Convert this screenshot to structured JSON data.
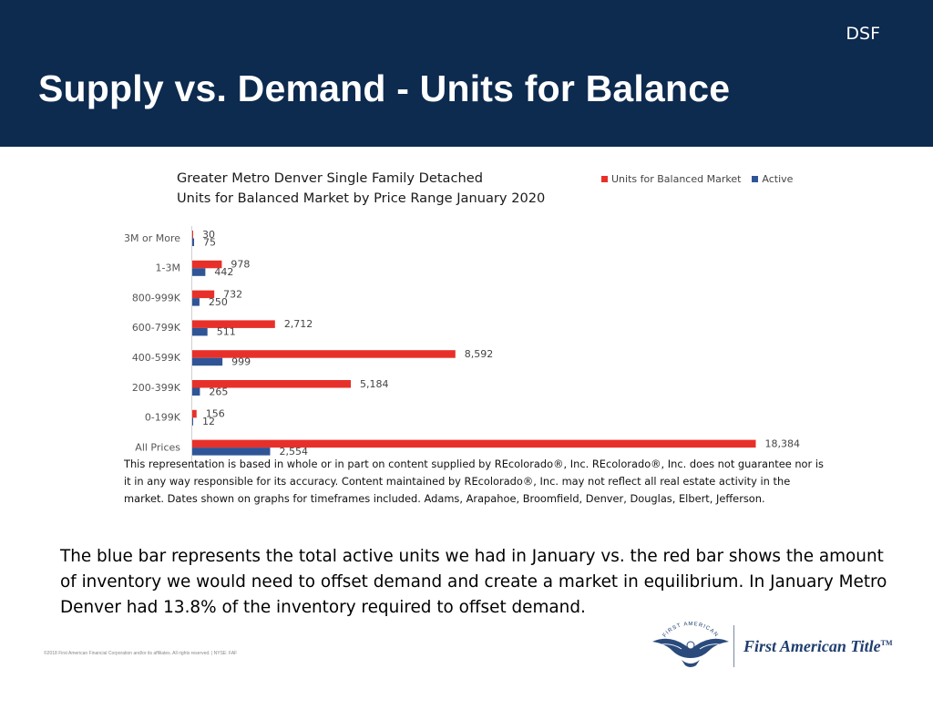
{
  "header": {
    "tag": "DSF",
    "title": "Supply vs. Demand - Units for Balance"
  },
  "colors": {
    "header_bg": "#0d2a4f",
    "balanced": "#e8302a",
    "active": "#2f5597"
  },
  "chart_data": {
    "type": "bar",
    "orientation": "horizontal",
    "title": "Greater Metro Denver Single Family Detached Units for Balanced Market by Price Range January 2020",
    "title_lines": [
      "Greater Metro Denver Single Family Detached",
      "Units for Balanced Market by Price Range January 2020"
    ],
    "categories": [
      "3M or More",
      "1-3M",
      "800-999K",
      "600-799K",
      "400-599K",
      "200-399K",
      "0-199K",
      "All Prices"
    ],
    "series": [
      {
        "name": "Units for Balanced Market",
        "values": [
          30,
          978,
          732,
          2712,
          8592,
          5184,
          156,
          18384
        ],
        "labels": [
          "30",
          "978",
          "732",
          "2,712",
          "8,592",
          "5,184",
          "156",
          "18,384"
        ]
      },
      {
        "name": "Active",
        "values": [
          75,
          442,
          250,
          511,
          999,
          265,
          12,
          2554
        ],
        "labels": [
          "75",
          "442",
          "250",
          "511",
          "999",
          "265",
          "12",
          "2,554"
        ]
      }
    ],
    "xlim": [
      0,
      18384
    ],
    "grid": false,
    "legend_position": "top-right"
  },
  "disclaimer": "This representation is based in whole or in part on content supplied by REcolorado®, Inc. REcolorado®, Inc. does not guarantee nor is it in any way responsible for its accuracy. Content maintained by REcolorado®, Inc. may not reflect all real estate activity in the market. Dates shown on graphs for timeframes included.  Adams, Arapahoe, Broomfield, Denver, Douglas, Elbert, Jefferson.",
  "summary": "The blue bar represents the total active units we had in January vs. the red bar shows the amount of inventory we would need to offset demand and create a market in equilibrium. In January Metro Denver had 13.8% of the inventory required to offset demand.",
  "footer": {
    "copyright": "©2018 First American Financial Corporation and/or its affiliates.  All rights reserved.  |  NYSE: FAF"
  },
  "logo": {
    "name": "First American Title",
    "tm": "TM",
    "emblem_text": "FIRST AMERICAN",
    "icon": "eagle-icon"
  }
}
